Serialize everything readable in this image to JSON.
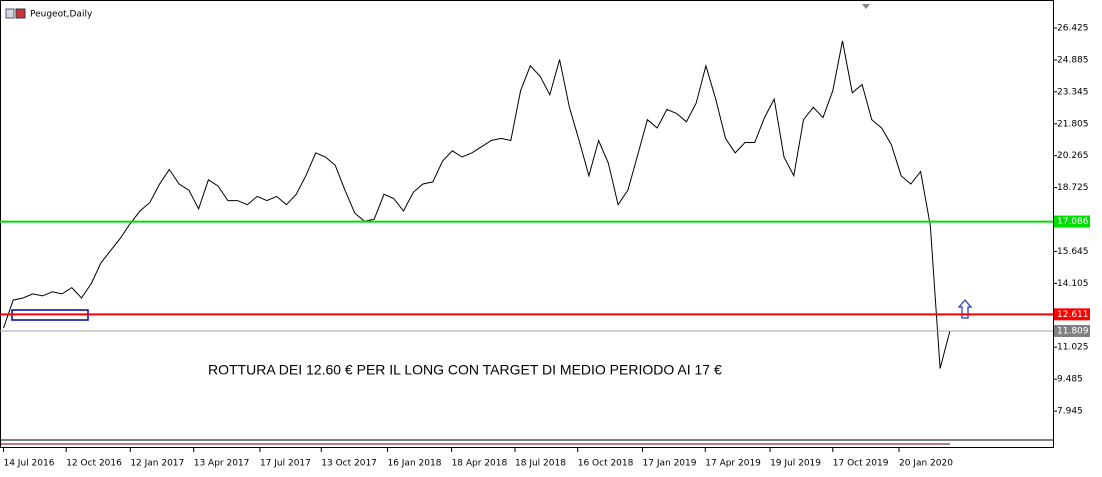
{
  "chart_data": {
    "type": "line",
    "title": "Peugeot,Daily",
    "annotation": "ROTTURA DEI 12.60 € PER IL LONG CON TARGET DI MEDIO PERIODO AI 17 €",
    "color": "#000000",
    "x": [
      "2016-07-14",
      "2016-07-28",
      "2016-08-11",
      "2016-08-25",
      "2016-09-08",
      "2016-09-22",
      "2016-10-06",
      "2016-10-20",
      "2016-11-03",
      "2016-11-17",
      "2016-12-01",
      "2016-12-15",
      "2016-12-29",
      "2017-01-12",
      "2017-01-26",
      "2017-02-09",
      "2017-02-23",
      "2017-03-09",
      "2017-03-23",
      "2017-04-06",
      "2017-04-20",
      "2017-05-04",
      "2017-05-18",
      "2017-06-01",
      "2017-06-15",
      "2017-06-29",
      "2017-07-13",
      "2017-07-27",
      "2017-08-10",
      "2017-08-24",
      "2017-09-07",
      "2017-09-21",
      "2017-10-05",
      "2017-10-19",
      "2017-11-02",
      "2017-11-16",
      "2017-11-30",
      "2017-12-14",
      "2017-12-28",
      "2018-01-11",
      "2018-01-25",
      "2018-02-08",
      "2018-02-22",
      "2018-03-08",
      "2018-03-22",
      "2018-04-05",
      "2018-04-19",
      "2018-05-03",
      "2018-05-17",
      "2018-05-31",
      "2018-06-14",
      "2018-06-28",
      "2018-07-12",
      "2018-07-26",
      "2018-08-09",
      "2018-08-23",
      "2018-09-06",
      "2018-09-20",
      "2018-10-04",
      "2018-10-18",
      "2018-11-01",
      "2018-11-15",
      "2018-11-29",
      "2018-12-13",
      "2018-12-27",
      "2019-01-10",
      "2019-01-24",
      "2019-02-07",
      "2019-02-21",
      "2019-03-07",
      "2019-03-21",
      "2019-04-04",
      "2019-04-18",
      "2019-05-02",
      "2019-05-16",
      "2019-05-30",
      "2019-06-13",
      "2019-06-27",
      "2019-07-11",
      "2019-07-25",
      "2019-08-08",
      "2019-08-22",
      "2019-09-05",
      "2019-09-19",
      "2019-10-03",
      "2019-10-17",
      "2019-10-31",
      "2019-11-14",
      "2019-11-28",
      "2019-12-12",
      "2019-12-26",
      "2020-01-09",
      "2020-01-23",
      "2020-02-06",
      "2020-02-20",
      "2020-03-05",
      "2020-03-19",
      "2020-04-02"
    ],
    "values": [
      11.95,
      13.3,
      13.4,
      13.6,
      13.5,
      13.7,
      13.6,
      13.9,
      13.4,
      14.1,
      15.1,
      15.7,
      16.3,
      17.0,
      17.6,
      18.0,
      18.9,
      19.6,
      18.9,
      18.6,
      17.7,
      19.1,
      18.8,
      18.1,
      18.1,
      17.9,
      18.3,
      18.1,
      18.3,
      17.9,
      18.4,
      19.3,
      20.4,
      20.2,
      19.8,
      18.6,
      17.5,
      17.1,
      17.2,
      18.4,
      18.2,
      17.6,
      18.5,
      18.9,
      19.0,
      20.0,
      20.5,
      20.2,
      20.4,
      20.7,
      21.0,
      21.1,
      21.0,
      23.4,
      24.6,
      24.1,
      23.2,
      24.9,
      22.6,
      21.0,
      19.3,
      21.0,
      19.9,
      17.9,
      18.6,
      20.3,
      22.0,
      21.6,
      22.5,
      22.3,
      21.9,
      22.8,
      24.6,
      23.0,
      21.1,
      20.4,
      20.9,
      20.9,
      22.1,
      23.0,
      20.2,
      19.3,
      22.0,
      22.6,
      22.1,
      23.4,
      25.8,
      23.3,
      23.7,
      22.0,
      21.6,
      20.8,
      19.3,
      18.9,
      19.5,
      16.9,
      10.0,
      11.81
    ],
    "xlim": [
      "2016-07-09",
      "2020-08-28"
    ],
    "xticks": [
      {
        "value": "2016-07-14",
        "label": "14 Jul 2016"
      },
      {
        "value": "2016-10-12",
        "label": "12 Oct 2016"
      },
      {
        "value": "2017-01-12",
        "label": "12 Jan 2017"
      },
      {
        "value": "2017-04-13",
        "label": "13 Apr 2017"
      },
      {
        "value": "2017-07-17",
        "label": "17 Jul 2017"
      },
      {
        "value": "2017-10-13",
        "label": "13 Oct 2017"
      },
      {
        "value": "2018-01-16",
        "label": "16 Jan 2018"
      },
      {
        "value": "2018-04-18",
        "label": "18 Apr 2018"
      },
      {
        "value": "2018-07-18",
        "label": "18 Jul 2018"
      },
      {
        "value": "2018-10-16",
        "label": "16 Oct 2018"
      },
      {
        "value": "2019-01-17",
        "label": "17 Jan 2019"
      },
      {
        "value": "2019-04-17",
        "label": "17 Apr 2019"
      },
      {
        "value": "2019-07-19",
        "label": "19 Jul 2019"
      },
      {
        "value": "2019-10-17",
        "label": "17 Oct 2019"
      },
      {
        "value": "2020-01-20",
        "label": "20 Jan 2020"
      }
    ],
    "ylim": [
      6.55,
      27.534
    ],
    "yticks": [
      26.425,
      24.885,
      23.345,
      21.805,
      20.265,
      18.725,
      15.645,
      14.105,
      11.025,
      9.485,
      7.945
    ],
    "grid": false,
    "levels": [
      {
        "value": 17.086,
        "color": "#00dd00"
      },
      {
        "value": 12.611,
        "color": "#ff0000"
      },
      {
        "value": 11.809,
        "color": "#a0a0a0"
      }
    ]
  }
}
